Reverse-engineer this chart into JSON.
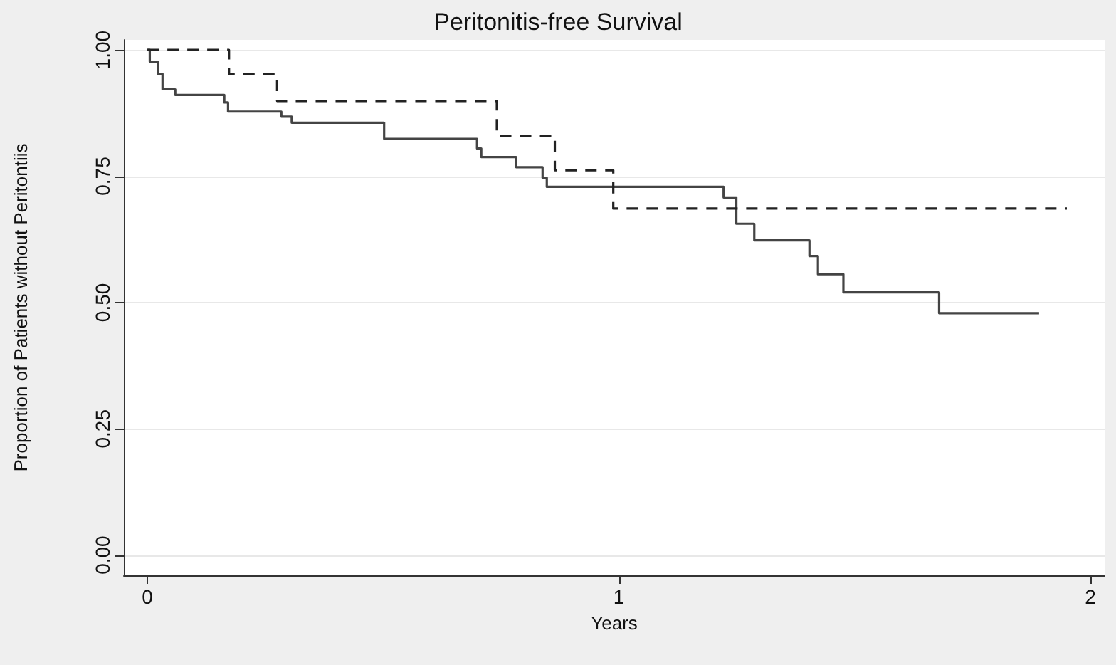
{
  "chart_data": {
    "type": "step",
    "title": "Peritonitis-free Survival",
    "xlabel": "Years",
    "ylabel": "Proportion of Patients without Peritontiis",
    "series": [
      {
        "color": "#444444",
        "line_style": "solid",
        "x": [
          0,
          0.005,
          0.022,
          0.032,
          0.059,
          0.163,
          0.171,
          0.284,
          0.306,
          0.502,
          0.699,
          0.708,
          0.782,
          0.838,
          0.847,
          1.222,
          1.249,
          1.287,
          1.404,
          1.422,
          1.476,
          1.679,
          1.891
        ],
        "values": [
          1.0,
          0.977,
          0.953,
          0.922,
          0.911,
          0.896,
          0.878,
          0.868,
          0.856,
          0.824,
          0.805,
          0.788,
          0.768,
          0.747,
          0.729,
          0.708,
          0.656,
          0.623,
          0.592,
          0.556,
          0.52,
          0.479,
          0.479
        ]
      },
      {
        "color": "#222222",
        "line_style": "dashed",
        "x": [
          0,
          0.173,
          0.275,
          0.741,
          0.864,
          0.988,
          1.95
        ],
        "values": [
          1.0,
          0.953,
          0.899,
          0.83,
          0.762,
          0.686,
          0.686
        ]
      }
    ],
    "xlim": [
      -0.05,
      2.03
    ],
    "xticks": [
      0,
      1,
      2
    ],
    "ylim": [
      -0.04,
      1.02
    ],
    "yticks": [
      {
        "value": 0,
        "label": "0.00"
      },
      {
        "value": 0.25,
        "label": "0.25"
      },
      {
        "value": 0.5,
        "label": "0.50"
      },
      {
        "value": 0.75,
        "label": "0.75"
      },
      {
        "value": 1,
        "label": "1.00"
      }
    ],
    "grid": "y",
    "marker": "none"
  }
}
